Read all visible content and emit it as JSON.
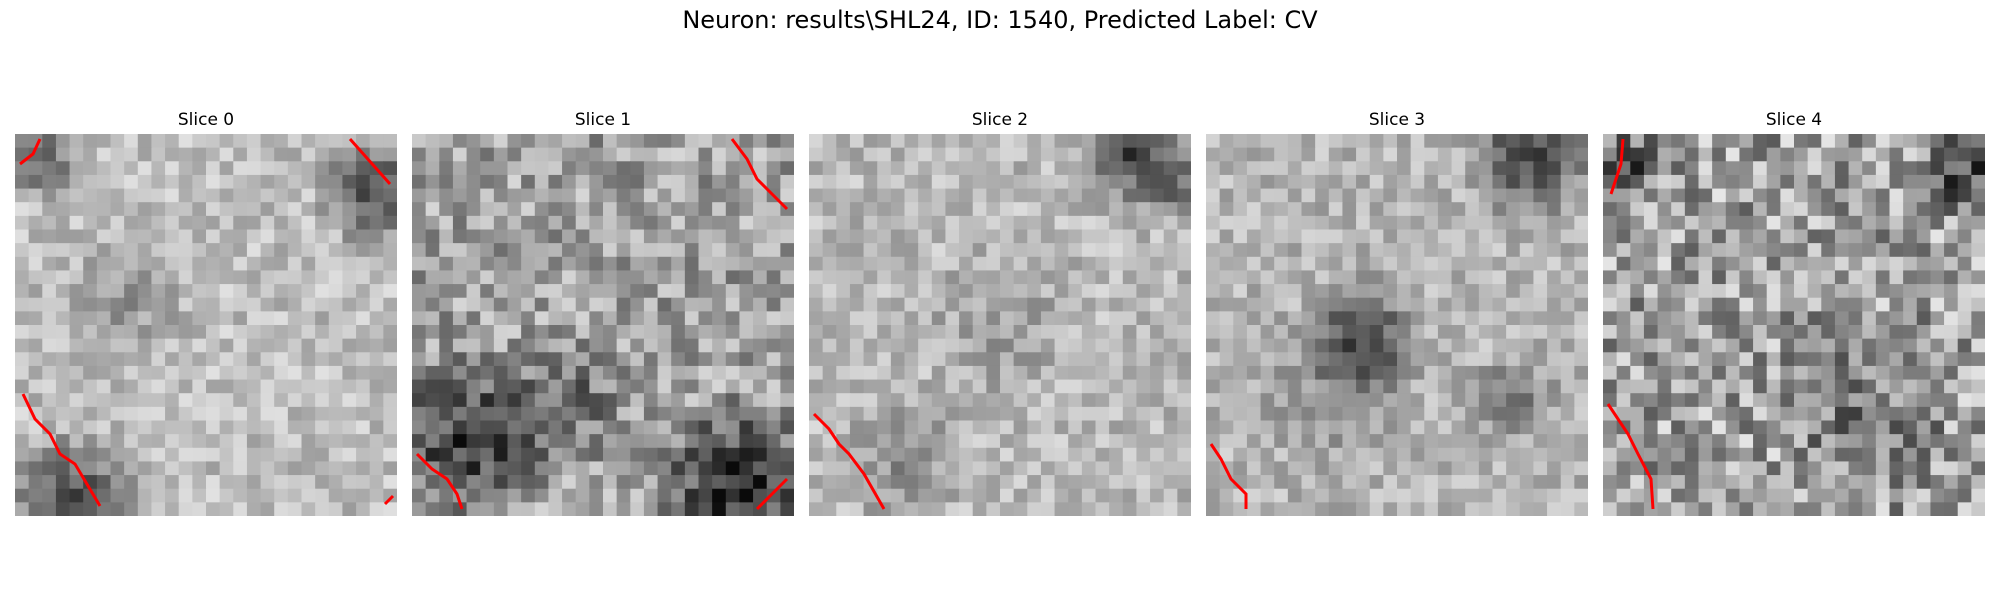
{
  "figure": {
    "title": "Neuron: results\\SHL24, ID: 1540, Predicted Label: CV"
  },
  "slices": [
    {
      "title": "Slice 0"
    },
    {
      "title": "Slice 1"
    },
    {
      "title": "Slice 2"
    },
    {
      "title": "Slice 3"
    },
    {
      "title": "Slice 4"
    }
  ],
  "colors": {
    "contour": "#ff0000",
    "colormap": "grayscale",
    "background": "#ffffff"
  }
}
